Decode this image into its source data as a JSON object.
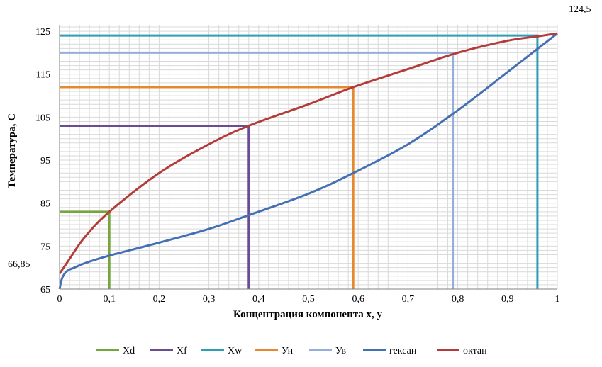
{
  "chart_data": {
    "type": "line",
    "title": "",
    "xlabel": "Концентрация компонента x, y",
    "ylabel": "Температура, С",
    "xlim": [
      0,
      1
    ],
    "ylim": [
      65,
      126.5
    ],
    "x_ticks": [
      "0",
      "0,1",
      "0,2",
      "0,3",
      "0,4",
      "0,5",
      "0,6",
      "0,7",
      "0,8",
      "0,9",
      "1"
    ],
    "y_ticks": [
      "65",
      "75",
      "85",
      "95",
      "105",
      "115",
      "125"
    ],
    "y_tick_values": [
      65,
      75,
      85,
      95,
      105,
      115,
      125
    ],
    "grid": true,
    "legend_position": "bottom",
    "annotations": {
      "bottom_left": "66,85",
      "top_right": "124,5"
    },
    "series": [
      {
        "name": "Xd",
        "color": "#77a53d",
        "kind": "marker",
        "points": [
          [
            0,
            83
          ],
          [
            0.1,
            83
          ],
          [
            0.1,
            65
          ]
        ]
      },
      {
        "name": "Xf",
        "color": "#6a4c93",
        "kind": "marker",
        "points": [
          [
            0,
            103
          ],
          [
            0.38,
            103
          ],
          [
            0.38,
            65
          ]
        ]
      },
      {
        "name": "Xw",
        "color": "#2f9db5",
        "kind": "marker",
        "points": [
          [
            0,
            124
          ],
          [
            0.96,
            124
          ],
          [
            0.96,
            65
          ]
        ]
      },
      {
        "name": "Ун",
        "color": "#e6892e",
        "kind": "marker",
        "points": [
          [
            0,
            112
          ],
          [
            0.59,
            112
          ],
          [
            0.59,
            65
          ]
        ]
      },
      {
        "name": "Ув",
        "color": "#96aedb",
        "kind": "marker",
        "points": [
          [
            0,
            120
          ],
          [
            0.79,
            120
          ],
          [
            0.79,
            65
          ]
        ]
      },
      {
        "name": "гексан",
        "color": "#4470b3",
        "kind": "curve",
        "points": [
          [
            0,
            65
          ],
          [
            0.005,
            67.5
          ],
          [
            0.015,
            69.2
          ],
          [
            0.03,
            70
          ],
          [
            0.05,
            71
          ],
          [
            0.1,
            72.8
          ],
          [
            0.2,
            75.8
          ],
          [
            0.3,
            79
          ],
          [
            0.38,
            82.2
          ],
          [
            0.5,
            87.2
          ],
          [
            0.59,
            92
          ],
          [
            0.7,
            98.7
          ],
          [
            0.8,
            106.6
          ],
          [
            0.9,
            115.5
          ],
          [
            1,
            124.5
          ]
        ]
      },
      {
        "name": "октан",
        "color": "#b33c3a",
        "kind": "curve",
        "points": [
          [
            0,
            68.6
          ],
          [
            0.02,
            72
          ],
          [
            0.05,
            77
          ],
          [
            0.1,
            83
          ],
          [
            0.2,
            92
          ],
          [
            0.3,
            98.7
          ],
          [
            0.38,
            103
          ],
          [
            0.5,
            108
          ],
          [
            0.59,
            112
          ],
          [
            0.7,
            116.2
          ],
          [
            0.8,
            120
          ],
          [
            0.9,
            122.8
          ],
          [
            0.96,
            123.8
          ],
          [
            1,
            124.5
          ]
        ]
      }
    ]
  }
}
